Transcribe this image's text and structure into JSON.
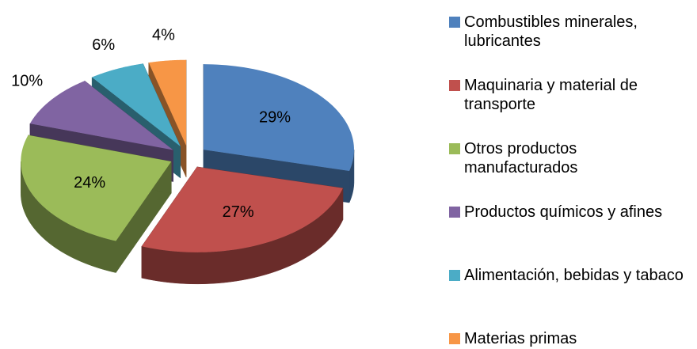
{
  "chart_data": {
    "type": "pie",
    "categories": [
      "Combustibles minerales, lubricantes",
      "Maquinaria y material de transporte",
      "Otros productos manufacturados",
      "Productos químicos y afines",
      "Alimentación, bebidas y tabaco",
      "Materias primas"
    ],
    "values": [
      29,
      27,
      24,
      10,
      6,
      4
    ],
    "value_labels": [
      "29%",
      "27%",
      "24%",
      "10%",
      "6%",
      "4%"
    ],
    "colors": [
      "#4f81bd",
      "#c0504d",
      "#9bbb59",
      "#8064a2",
      "#4bacc6",
      "#f79646"
    ],
    "legend": "right"
  }
}
